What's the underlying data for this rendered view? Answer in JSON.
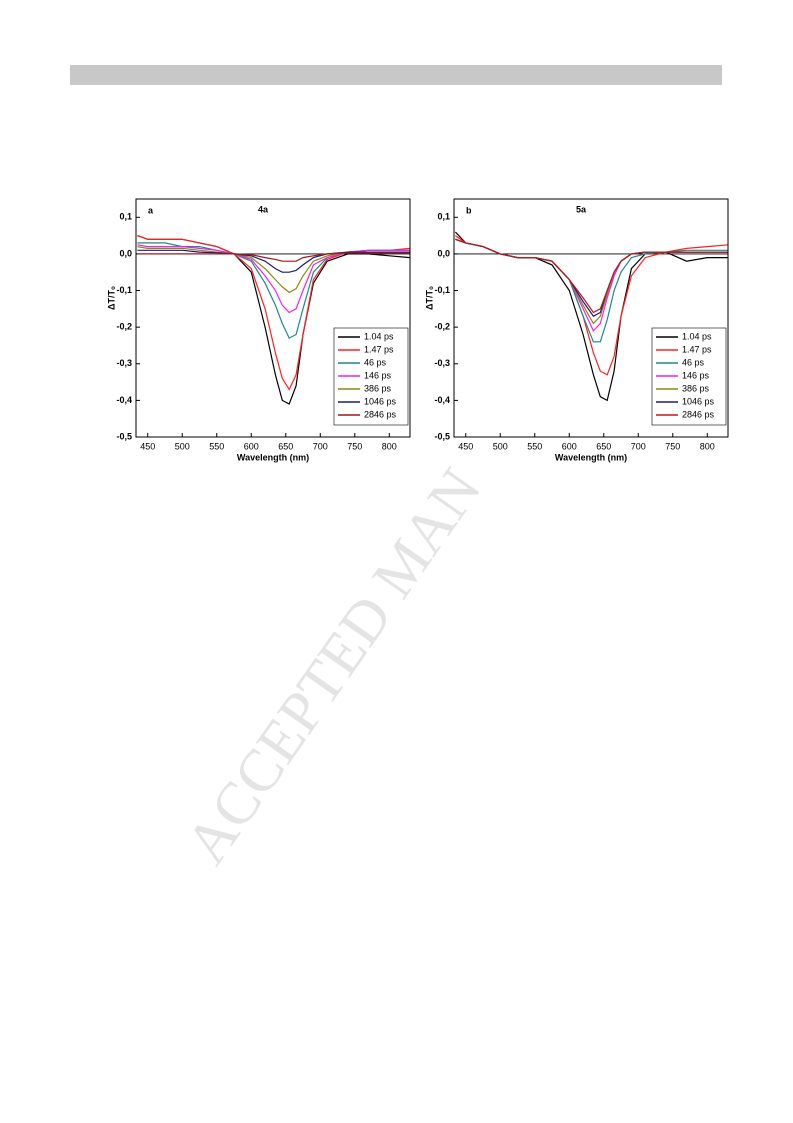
{
  "watermark": "ACCEPTED MAN",
  "chart_data": [
    {
      "type": "line",
      "panel": "a",
      "title": "4a",
      "xlabel": "Wavelength (nm)",
      "ylabel": "ΔT/T₀",
      "xlim": [
        433,
        830
      ],
      "ylim": [
        -0.5,
        0.15
      ],
      "xticks": [
        450,
        500,
        550,
        600,
        650,
        700,
        750,
        800
      ],
      "yticks": [
        {
          "value": -0.5,
          "label": "-0,5"
        },
        {
          "value": -0.4,
          "label": "-0,4"
        },
        {
          "value": -0.3,
          "label": "-0,3"
        },
        {
          "value": -0.2,
          "label": "-0,2"
        },
        {
          "value": -0.1,
          "label": "-0,1"
        },
        {
          "value": 0,
          "label": "0,0"
        },
        {
          "value": 0.1,
          "label": "0,1"
        }
      ],
      "legend": "lower right",
      "x": [
        435,
        450,
        475,
        500,
        525,
        550,
        575,
        600,
        620,
        635,
        645,
        655,
        665,
        675,
        690,
        710,
        740,
        770,
        800,
        830
      ],
      "series": [
        {
          "name": "1.04 ps",
          "color": "#000000",
          "values": [
            0.05,
            0.04,
            0.04,
            0.04,
            0.03,
            0.02,
            0.0,
            -0.05,
            -0.2,
            -0.33,
            -0.4,
            -0.41,
            -0.36,
            -0.22,
            -0.08,
            -0.02,
            0.0,
            0.0,
            -0.005,
            -0.01
          ]
        },
        {
          "name": "1.47 ps",
          "color": "#ff2020",
          "values": [
            0.05,
            0.04,
            0.04,
            0.04,
            0.03,
            0.02,
            0.0,
            -0.04,
            -0.15,
            -0.27,
            -0.34,
            -0.37,
            -0.33,
            -0.22,
            -0.07,
            -0.015,
            0.005,
            0.01,
            0.01,
            0.015
          ]
        },
        {
          "name": "46 ps",
          "color": "#1a8a8a",
          "values": [
            0.03,
            0.03,
            0.03,
            0.02,
            0.02,
            0.01,
            0.0,
            -0.02,
            -0.08,
            -0.14,
            -0.19,
            -0.23,
            -0.22,
            -0.15,
            -0.05,
            -0.01,
            0.005,
            0.01,
            0.01,
            0.01
          ]
        },
        {
          "name": "146 ps",
          "color": "#ee22ee",
          "values": [
            0.025,
            0.02,
            0.02,
            0.02,
            0.015,
            0.01,
            0.0,
            -0.015,
            -0.06,
            -0.1,
            -0.14,
            -0.16,
            -0.15,
            -0.1,
            -0.03,
            -0.01,
            0.005,
            0.01,
            0.01,
            0.01
          ]
        },
        {
          "name": "386 ps",
          "color": "#8a8a10",
          "values": [
            0.02,
            0.015,
            0.015,
            0.015,
            0.01,
            0.005,
            0.0,
            -0.01,
            -0.04,
            -0.07,
            -0.09,
            -0.105,
            -0.095,
            -0.06,
            -0.02,
            -0.005,
            0.005,
            0.005,
            0.005,
            0.005
          ]
        },
        {
          "name": "1046 ps",
          "color": "#1a1a80",
          "values": [
            0.01,
            0.01,
            0.01,
            0.01,
            0.005,
            0.003,
            0.0,
            -0.005,
            -0.02,
            -0.04,
            -0.05,
            -0.05,
            -0.045,
            -0.03,
            -0.01,
            0.0,
            0.005,
            0.005,
            0.005,
            0.005
          ]
        },
        {
          "name": "2846 ps",
          "color": "#a01818",
          "values": [
            0.0,
            0.0,
            0.0,
            0.0,
            0.0,
            0.0,
            0.0,
            -0.002,
            -0.01,
            -0.015,
            -0.02,
            -0.02,
            -0.02,
            -0.01,
            -0.005,
            0.0,
            0.003,
            0.003,
            0.003,
            0.003
          ]
        }
      ]
    },
    {
      "type": "line",
      "panel": "b",
      "title": "5a",
      "xlabel": "Wavelength (nm)",
      "ylabel": "ΔT/T₀",
      "xlim": [
        433,
        830
      ],
      "ylim": [
        -0.5,
        0.15
      ],
      "xticks": [
        450,
        500,
        550,
        600,
        650,
        700,
        750,
        800
      ],
      "yticks": [
        {
          "value": -0.5,
          "label": "-0,5"
        },
        {
          "value": -0.4,
          "label": "-0,4"
        },
        {
          "value": -0.3,
          "label": "-0,3"
        },
        {
          "value": -0.2,
          "label": "-0,2"
        },
        {
          "value": -0.1,
          "label": "-0,1"
        },
        {
          "value": 0,
          "label": "0,0"
        },
        {
          "value": 0.1,
          "label": "0,1"
        }
      ],
      "legend": "lower right",
      "x": [
        435,
        450,
        475,
        500,
        525,
        550,
        575,
        600,
        620,
        635,
        645,
        655,
        665,
        675,
        690,
        710,
        740,
        770,
        800,
        830
      ],
      "series": [
        {
          "name": "1.04 ps",
          "color": "#000000",
          "values": [
            0.06,
            0.03,
            0.02,
            0.0,
            -0.01,
            -0.01,
            -0.03,
            -0.1,
            -0.22,
            -0.33,
            -0.39,
            -0.4,
            -0.32,
            -0.17,
            -0.04,
            0.0,
            0.005,
            -0.02,
            -0.01,
            -0.01
          ]
        },
        {
          "name": "1.47 ps",
          "color": "#ff2020",
          "values": [
            0.05,
            0.03,
            0.02,
            0.0,
            -0.01,
            -0.01,
            -0.02,
            -0.07,
            -0.17,
            -0.27,
            -0.32,
            -0.33,
            -0.28,
            -0.17,
            -0.06,
            -0.01,
            0.005,
            0.015,
            0.02,
            0.025
          ]
        },
        {
          "name": "46 ps",
          "color": "#1a8a8a",
          "values": [
            0.04,
            0.03,
            0.02,
            0.0,
            -0.01,
            -0.01,
            -0.02,
            -0.07,
            -0.17,
            -0.24,
            -0.24,
            -0.18,
            -0.1,
            -0.05,
            -0.01,
            0.0,
            0.005,
            0.01,
            0.01,
            0.01
          ]
        },
        {
          "name": "146 ps",
          "color": "#ee22ee",
          "values": [
            0.04,
            0.03,
            0.02,
            0.0,
            -0.01,
            -0.01,
            -0.02,
            -0.07,
            -0.15,
            -0.21,
            -0.19,
            -0.12,
            -0.06,
            -0.02,
            0.0,
            0.005,
            0.005,
            0.005,
            0.005,
            0.005
          ]
        },
        {
          "name": "386 ps",
          "color": "#8a8a10",
          "values": [
            0.04,
            0.03,
            0.02,
            0.0,
            -0.01,
            -0.01,
            -0.02,
            -0.07,
            -0.14,
            -0.19,
            -0.17,
            -0.11,
            -0.05,
            -0.02,
            0.0,
            0.005,
            0.005,
            0.005,
            0.005,
            0.005
          ]
        },
        {
          "name": "1046 ps",
          "color": "#1a1a80",
          "values": [
            0.04,
            0.03,
            0.02,
            0.0,
            -0.01,
            -0.01,
            -0.02,
            -0.07,
            -0.13,
            -0.17,
            -0.16,
            -0.1,
            -0.05,
            -0.02,
            0.0,
            0.005,
            0.005,
            0.005,
            0.005,
            0.005
          ]
        },
        {
          "name": "2846 ps",
          "color": "#c01818",
          "values": [
            0.04,
            0.03,
            0.02,
            0.0,
            -0.01,
            -0.01,
            -0.02,
            -0.07,
            -0.12,
            -0.16,
            -0.15,
            -0.1,
            -0.05,
            -0.02,
            0.0,
            0.005,
            0.005,
            0.005,
            0.005,
            0.005
          ]
        }
      ]
    }
  ]
}
